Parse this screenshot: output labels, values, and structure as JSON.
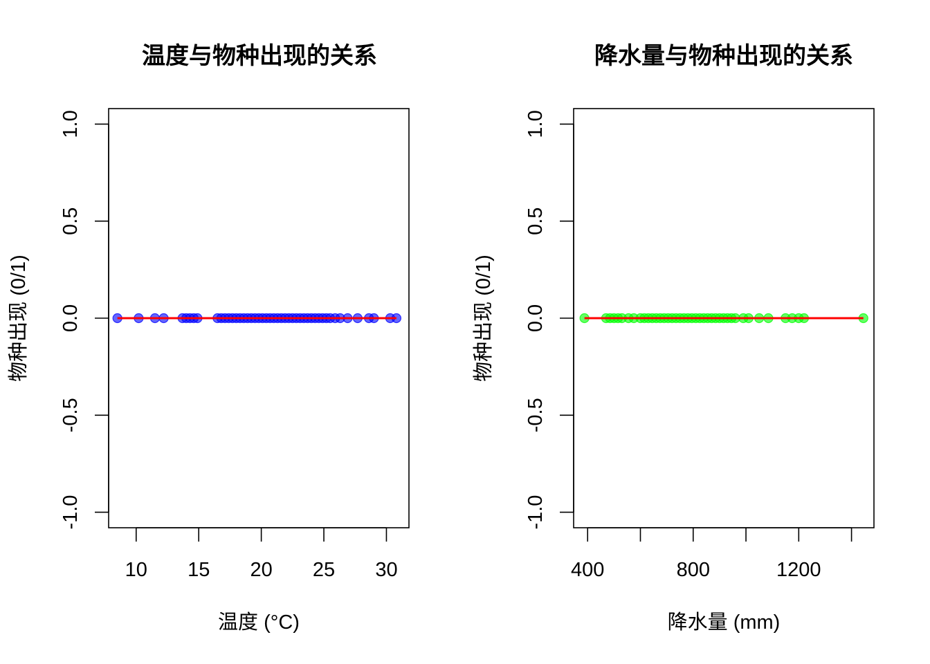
{
  "chart_data": [
    {
      "type": "scatter",
      "title": "温度与物种出现的关系",
      "xlabel": "温度 (°C)",
      "ylabel": "物种出现 (0/1)",
      "xlim": [
        7.8,
        31.8
      ],
      "ylim": [
        -1.08,
        1.08
      ],
      "xticks": [
        10,
        15,
        20,
        25,
        30
      ],
      "yticks": [
        -1.0,
        -0.5,
        0.0,
        0.5,
        1.0
      ],
      "xtick_labels": [
        "10",
        "15",
        "20",
        "25",
        "30"
      ],
      "ytick_labels": [
        "-1.0",
        "-0.5",
        "0.0",
        "0.5",
        "1.0"
      ],
      "point_color": "#0000ff",
      "line_color": "#ff0000",
      "points": {
        "x": [
          8.5,
          10.2,
          11.5,
          12.2,
          13.7,
          14.0,
          14.3,
          14.6,
          14.9,
          16.5,
          16.8,
          17.1,
          17.4,
          17.7,
          18.0,
          18.3,
          18.6,
          18.9,
          19.2,
          19.5,
          19.8,
          20.1,
          20.4,
          20.7,
          21.0,
          21.3,
          21.6,
          21.9,
          22.2,
          22.5,
          22.8,
          23.1,
          23.4,
          23.7,
          24.0,
          24.3,
          24.6,
          24.9,
          25.2,
          25.5,
          25.9,
          26.3,
          26.9,
          27.7,
          28.6,
          29.0,
          30.3,
          30.8
        ],
        "y": [
          0,
          0,
          0,
          0,
          0,
          0,
          0,
          0,
          0,
          0,
          0,
          0,
          0,
          0,
          0,
          0,
          0,
          0,
          0,
          0,
          0,
          0,
          0,
          0,
          0,
          0,
          0,
          0,
          0,
          0,
          0,
          0,
          0,
          0,
          0,
          0,
          0,
          0,
          0,
          0,
          0,
          0,
          0,
          0,
          0,
          0,
          0,
          0
        ]
      },
      "fit_line": {
        "x": [
          8.5,
          30.8
        ],
        "y": [
          0,
          0
        ]
      }
    },
    {
      "type": "scatter",
      "title": "降水量与物种出现的关系",
      "xlabel": "降水量 (mm)",
      "ylabel": "物种出现 (0/1)",
      "xlim": [
        347,
        1485
      ],
      "ylim": [
        -1.08,
        1.08
      ],
      "xticks": [
        400,
        600,
        800,
        1000,
        1200,
        1400
      ],
      "yticks": [
        -1.0,
        -0.5,
        0.0,
        0.5,
        1.0
      ],
      "xtick_labels": [
        "400",
        "",
        "800",
        "",
        "1200",
        ""
      ],
      "ytick_labels": [
        "-1.0",
        "-0.5",
        "0.0",
        "0.5",
        "1.0"
      ],
      "point_color": "#00ff00",
      "line_color": "#ff0000",
      "points": {
        "x": [
          388,
          470,
          485,
          500,
          515,
          530,
          555,
          575,
          600,
          615,
          630,
          645,
          660,
          675,
          690,
          705,
          720,
          735,
          750,
          765,
          780,
          795,
          810,
          825,
          840,
          855,
          870,
          885,
          900,
          915,
          930,
          945,
          960,
          990,
          1010,
          1050,
          1085,
          1150,
          1175,
          1200,
          1220,
          1445
        ],
        "y": [
          0,
          0,
          0,
          0,
          0,
          0,
          0,
          0,
          0,
          0,
          0,
          0,
          0,
          0,
          0,
          0,
          0,
          0,
          0,
          0,
          0,
          0,
          0,
          0,
          0,
          0,
          0,
          0,
          0,
          0,
          0,
          0,
          0,
          0,
          0,
          0,
          0,
          0,
          0,
          0,
          0,
          0
        ]
      },
      "fit_line": {
        "x": [
          388,
          1445
        ],
        "y": [
          0,
          0
        ]
      }
    }
  ]
}
